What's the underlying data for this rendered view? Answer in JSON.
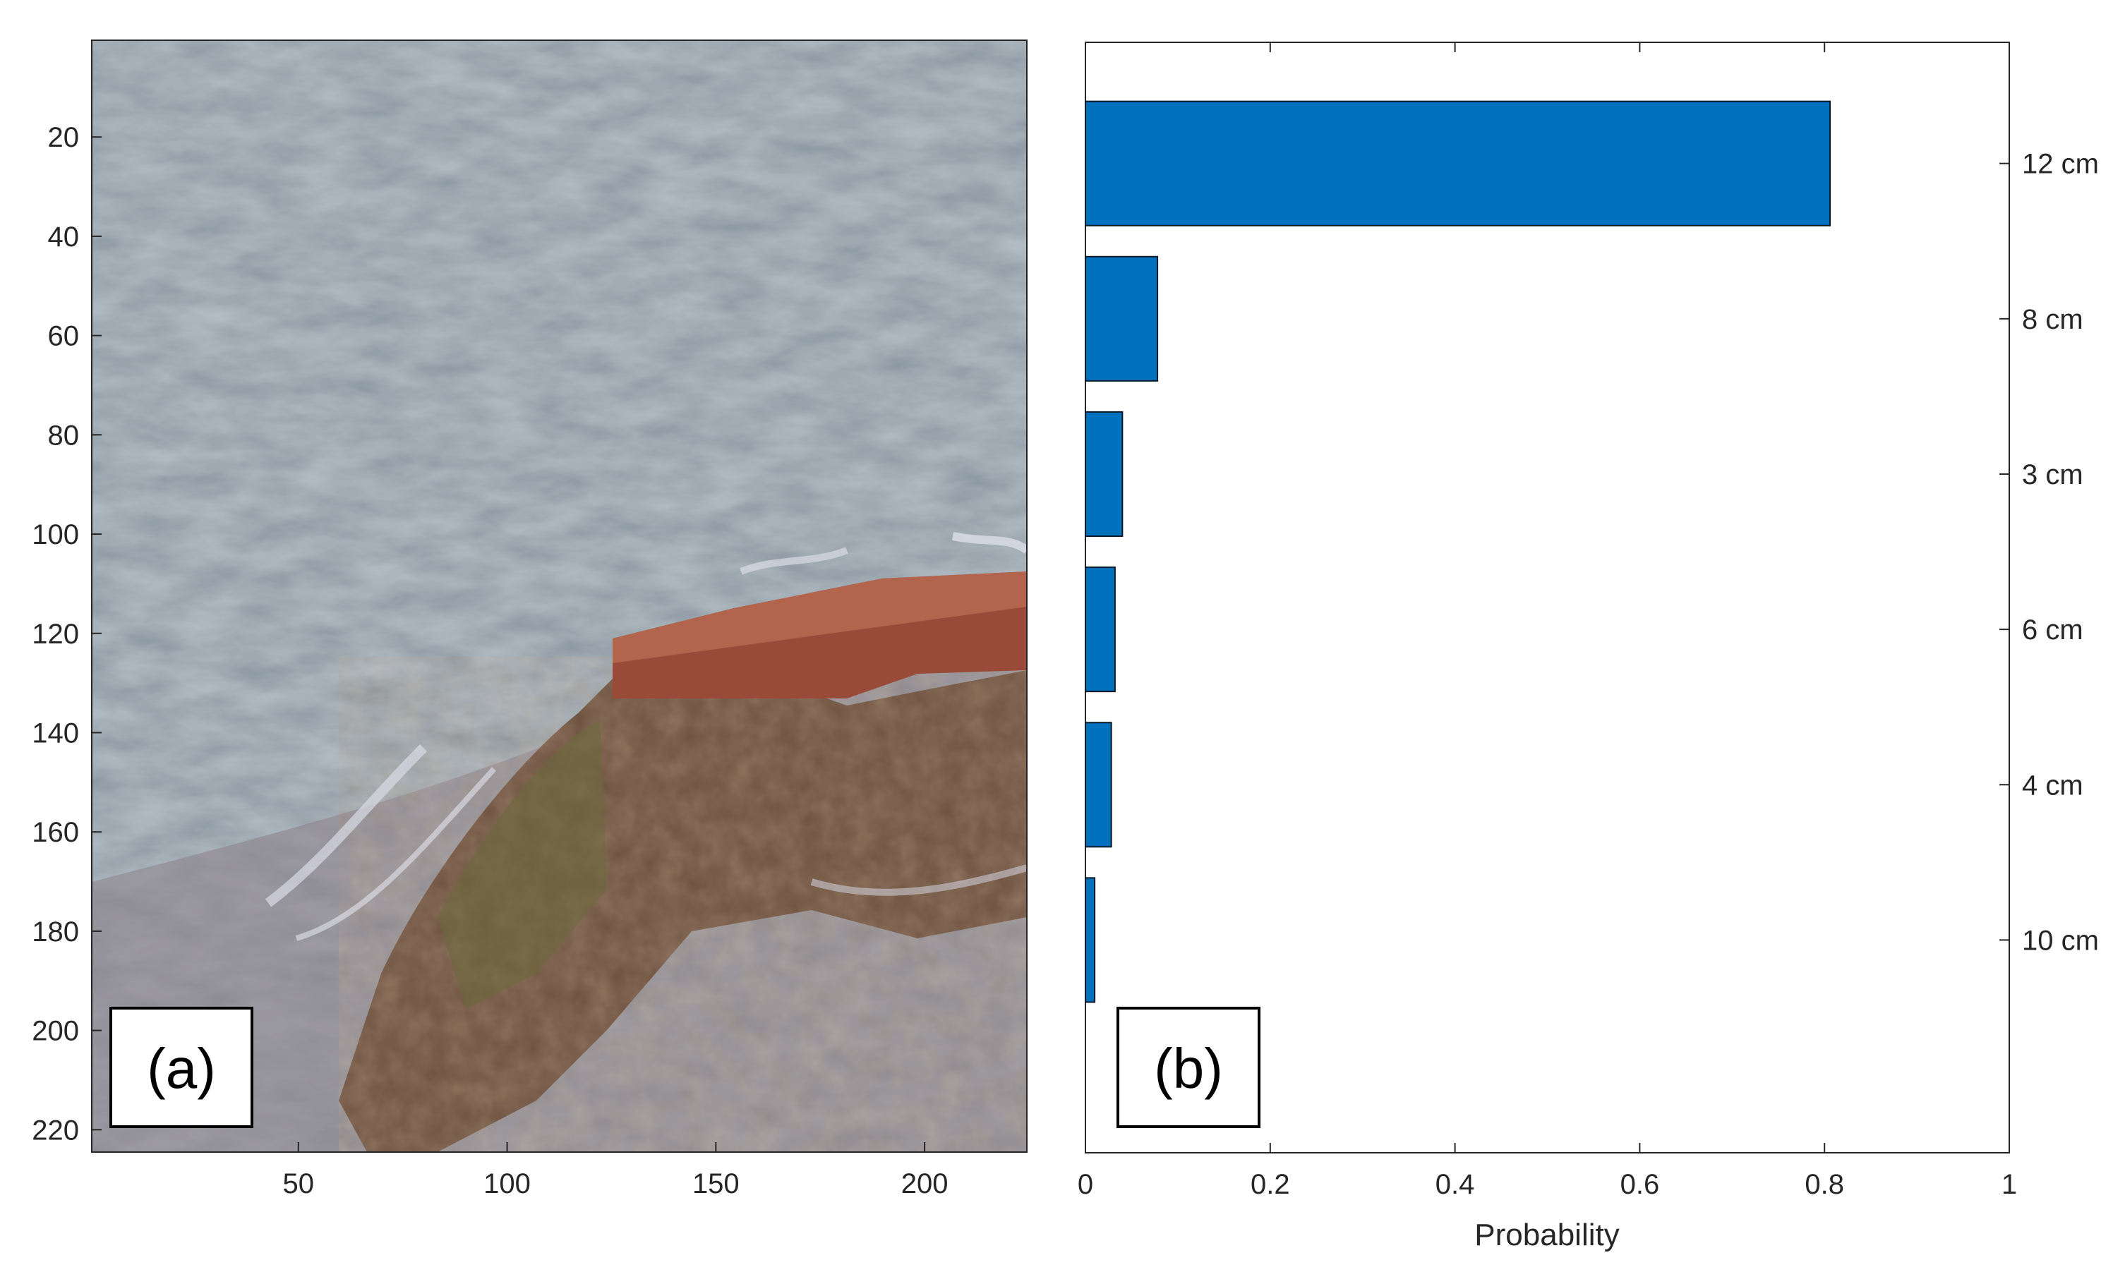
{
  "panels": {
    "a_label": "(a)",
    "b_label": "(b)"
  },
  "image_panel": {
    "description_colors": {
      "water": "#5e6e78",
      "rock": "#7a5a44",
      "foam": "#c9ccd6"
    },
    "xticks": [
      "50",
      "100",
      "150",
      "200"
    ],
    "xtick_values": [
      50,
      100,
      150,
      200
    ],
    "yticks": [
      "20",
      "40",
      "60",
      "80",
      "100",
      "120",
      "140",
      "160",
      "180",
      "200",
      "220"
    ],
    "ytick_values": [
      20,
      40,
      60,
      80,
      100,
      120,
      140,
      160,
      180,
      200,
      220
    ],
    "xlim": [
      0.5,
      224.5
    ],
    "ylim": [
      0.5,
      224.5
    ]
  },
  "chart_data": {
    "type": "bar",
    "orientation": "horizontal",
    "categories": [
      "12 cm",
      "8 cm",
      "3 cm",
      "6 cm",
      "4 cm",
      "10 cm"
    ],
    "values": [
      0.806,
      0.078,
      0.04,
      0.032,
      0.028,
      0.01
    ],
    "xlabel": "Probability",
    "xlim": [
      0,
      1
    ],
    "xticks": [
      "0",
      "0.2",
      "0.4",
      "0.6",
      "0.8",
      "1"
    ],
    "xtick_values": [
      0,
      0.2,
      0.4,
      0.6,
      0.8,
      1
    ],
    "ytick_side": "right",
    "bar_color": "#0072bd",
    "grid": false
  }
}
